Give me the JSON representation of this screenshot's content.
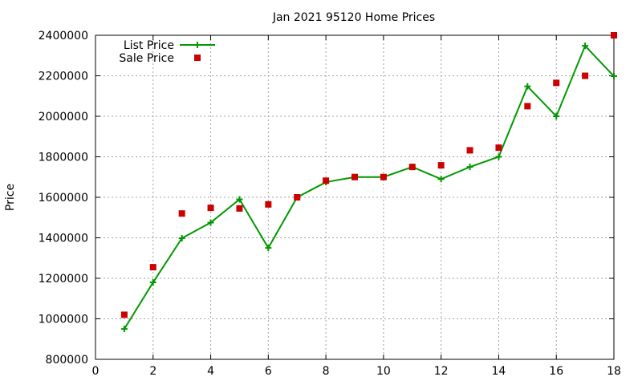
{
  "chart_data": {
    "type": "line",
    "title": "Jan 2021 95120 Home Prices",
    "xlabel": "",
    "ylabel": "Price",
    "xlim": [
      0,
      18
    ],
    "ylim": [
      800000,
      2400000
    ],
    "xticks": [
      0,
      2,
      4,
      6,
      8,
      10,
      12,
      14,
      16,
      18
    ],
    "yticks": [
      800000,
      1000000,
      1200000,
      1400000,
      1600000,
      1800000,
      2000000,
      2200000,
      2400000
    ],
    "grid": true,
    "legend_position": "top-left",
    "series": [
      {
        "name": "List Price",
        "style": "linespoints",
        "marker": "plus",
        "color": "#009900",
        "x": [
          1,
          2,
          3,
          4,
          5,
          6,
          7,
          8,
          9,
          10,
          11,
          12,
          13,
          14,
          15,
          16,
          17,
          18
        ],
        "y": [
          950000,
          1180000,
          1398000,
          1475000,
          1590000,
          1350000,
          1600000,
          1675000,
          1700000,
          1700000,
          1750000,
          1690000,
          1750000,
          1800000,
          2148000,
          2000000,
          2348000,
          2198000
        ]
      },
      {
        "name": "Sale Price",
        "style": "points",
        "marker": "square",
        "color": "#cc0000",
        "x": [
          1,
          2,
          3,
          4,
          5,
          6,
          7,
          8,
          9,
          10,
          11,
          12,
          13,
          14,
          15,
          16,
          17,
          18
        ],
        "y": [
          1020000,
          1255000,
          1520000,
          1548000,
          1545000,
          1565000,
          1600000,
          1682000,
          1700000,
          1700000,
          1750000,
          1758000,
          1832000,
          1845000,
          2050000,
          2165000,
          2200000,
          2400000
        ]
      }
    ]
  }
}
